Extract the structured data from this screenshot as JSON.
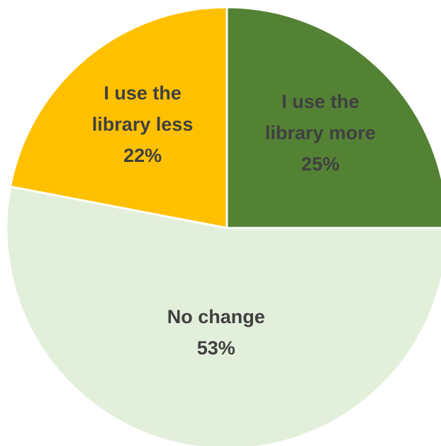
{
  "chart_data": {
    "type": "pie",
    "title": "",
    "start_angle_deg": 0,
    "direction": "clockwise",
    "slices": [
      {
        "label_lines": [
          "I use the",
          "library more"
        ],
        "value": 25,
        "value_label": "25%",
        "color": "#548235"
      },
      {
        "label_lines": [
          "No change"
        ],
        "value": 53,
        "value_label": "53%",
        "color": "#E2EFDA"
      },
      {
        "label_lines": [
          "I use the",
          "library less"
        ],
        "value": 22,
        "value_label": "22%",
        "color": "#FFC000"
      }
    ],
    "legend": "none",
    "label_color": "#404040",
    "separator_color": "#FFFFFF"
  }
}
